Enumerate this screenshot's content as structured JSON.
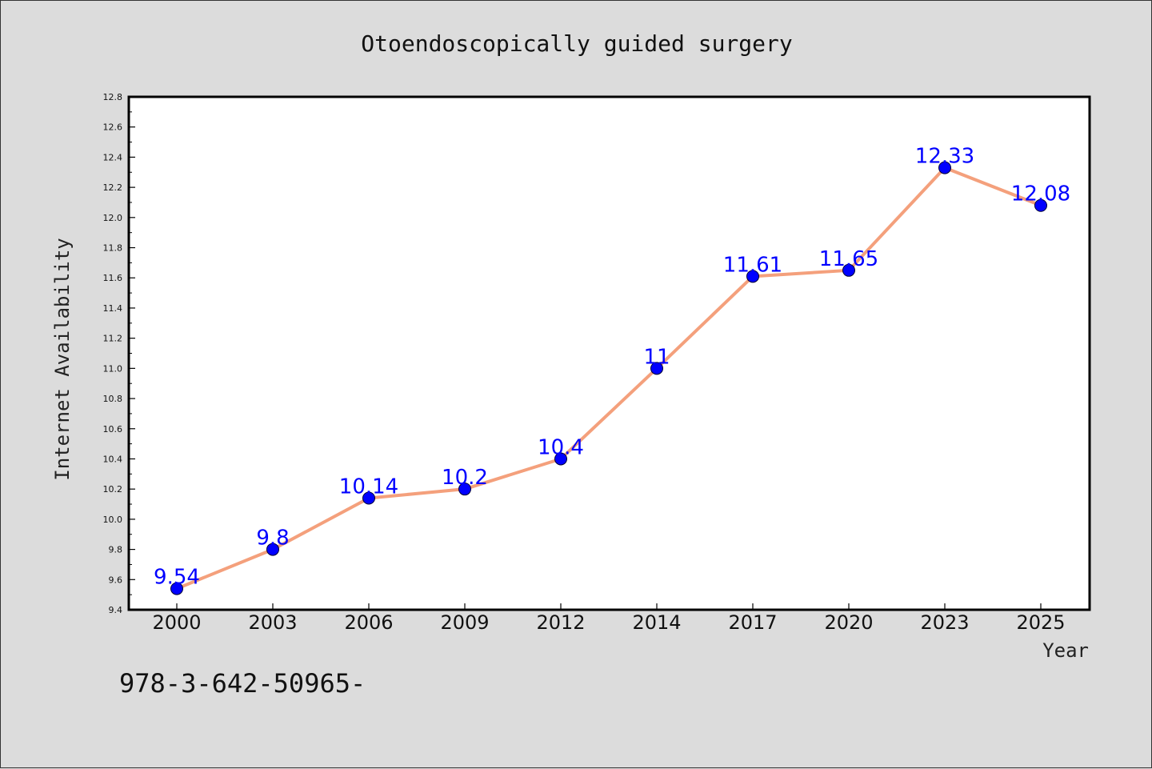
{
  "chart_data": {
    "type": "line",
    "title": "Otoendoscopically guided surgery",
    "xlabel": "Year",
    "ylabel": "Internet Availability",
    "categories": [
      "2000",
      "2003",
      "2006",
      "2009",
      "2012",
      "2014",
      "2017",
      "2020",
      "2023",
      "2025"
    ],
    "series": [
      {
        "values": [
          9.54,
          9.8,
          10.14,
          10.2,
          10.4,
          11,
          11.61,
          11.65,
          12.33,
          12.08
        ],
        "data_labels": [
          "9.54",
          "9.8",
          "10.14",
          "10.2",
          "10.4",
          "11",
          "11.61",
          "11.65",
          "12.33",
          "12.08"
        ]
      }
    ],
    "ylim": [
      9.4,
      12.8
    ],
    "yticks": [
      "9.4",
      "9.6",
      "9.8",
      "10.0",
      "10.2",
      "10.4",
      "10.6",
      "10.8",
      "11.0",
      "11.2",
      "11.4",
      "11.6",
      "11.8",
      "12.0",
      "12.2",
      "12.4",
      "12.6",
      "12.8"
    ],
    "grid": false,
    "legend": "none",
    "colors": {
      "line": "#f4a07c",
      "marker": "#0000ff",
      "data_label": "#0000ff",
      "plot_background": "#ffffff",
      "figure_background": "#dcdcdc"
    }
  },
  "caption": "978-3-642-50965-"
}
